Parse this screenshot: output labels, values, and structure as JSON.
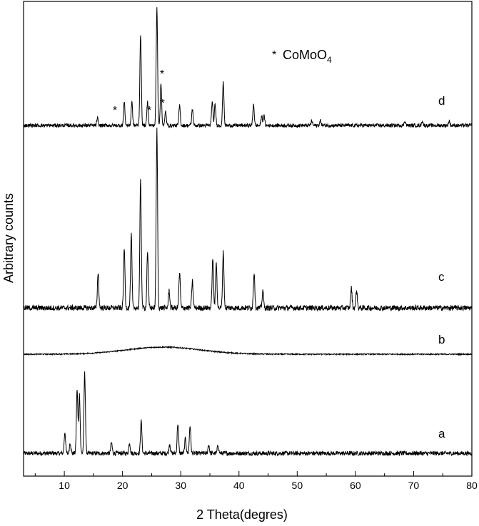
{
  "chart_data": {
    "type": "line",
    "title": "",
    "xlabel": "2 Theta(degres)",
    "ylabel": "Arbitrary counts",
    "xlim": [
      3,
      80
    ],
    "xticks": [
      10,
      20,
      30,
      40,
      50,
      60,
      70,
      80
    ],
    "grid": false,
    "legend": {
      "marker": "*",
      "label": "CoMoO",
      "subscript": "4",
      "placement": "top-right"
    },
    "series": [
      {
        "name": "a",
        "baseline": 0.04,
        "peaks": [
          [
            10.1,
            0.2
          ],
          [
            11.0,
            0.1
          ],
          [
            12.2,
            0.6
          ],
          [
            12.6,
            0.55
          ],
          [
            13.5,
            0.75
          ],
          [
            18.1,
            0.1
          ],
          [
            21.2,
            0.1
          ],
          [
            23.2,
            0.3
          ],
          [
            28.1,
            0.09
          ],
          [
            29.5,
            0.28
          ],
          [
            30.8,
            0.14
          ],
          [
            31.6,
            0.26
          ],
          [
            34.8,
            0.08
          ],
          [
            36.4,
            0.08
          ]
        ]
      },
      {
        "name": "b",
        "baseline": 0.04,
        "peaks": []
      },
      {
        "name": "c",
        "baseline": 0.03,
        "peaks": [
          [
            15.8,
            0.2
          ],
          [
            20.3,
            0.33
          ],
          [
            21.5,
            0.41
          ],
          [
            23.1,
            0.72
          ],
          [
            24.3,
            0.32
          ],
          [
            25.9,
            1.0
          ],
          [
            28.0,
            0.1
          ],
          [
            29.8,
            0.2
          ],
          [
            32.0,
            0.15
          ],
          [
            35.5,
            0.28
          ],
          [
            36.1,
            0.25
          ],
          [
            37.3,
            0.31
          ],
          [
            42.6,
            0.2
          ],
          [
            44.1,
            0.1
          ],
          [
            59.3,
            0.11
          ],
          [
            60.2,
            0.1
          ]
        ]
      },
      {
        "name": "d",
        "baseline": 0.03,
        "peaks": [
          [
            15.7,
            0.06
          ],
          [
            20.3,
            0.2
          ],
          [
            21.6,
            0.2
          ],
          [
            23.1,
            0.78
          ],
          [
            24.3,
            0.2
          ],
          [
            25.9,
            1.0
          ],
          [
            26.6,
            0.35
          ],
          [
            27.4,
            0.12
          ],
          [
            29.8,
            0.17
          ],
          [
            32.0,
            0.14
          ],
          [
            35.4,
            0.2
          ],
          [
            35.9,
            0.18
          ],
          [
            37.3,
            0.36
          ],
          [
            42.5,
            0.18
          ],
          [
            43.9,
            0.08
          ],
          [
            44.3,
            0.08
          ],
          [
            52.5,
            0.04
          ],
          [
            54.0,
            0.04
          ],
          [
            68.5,
            0.04
          ],
          [
            71.5,
            0.04
          ],
          [
            76.1,
            0.04
          ]
        ]
      }
    ],
    "annotations": [
      {
        "text": "*",
        "series": "d",
        "x": 18.8
      },
      {
        "text": "*",
        "series": "d",
        "x": 24.7
      },
      {
        "text": "*",
        "series": "d",
        "x": 27.0
      },
      {
        "text": "*",
        "series": "d",
        "x": 26.9
      }
    ]
  }
}
